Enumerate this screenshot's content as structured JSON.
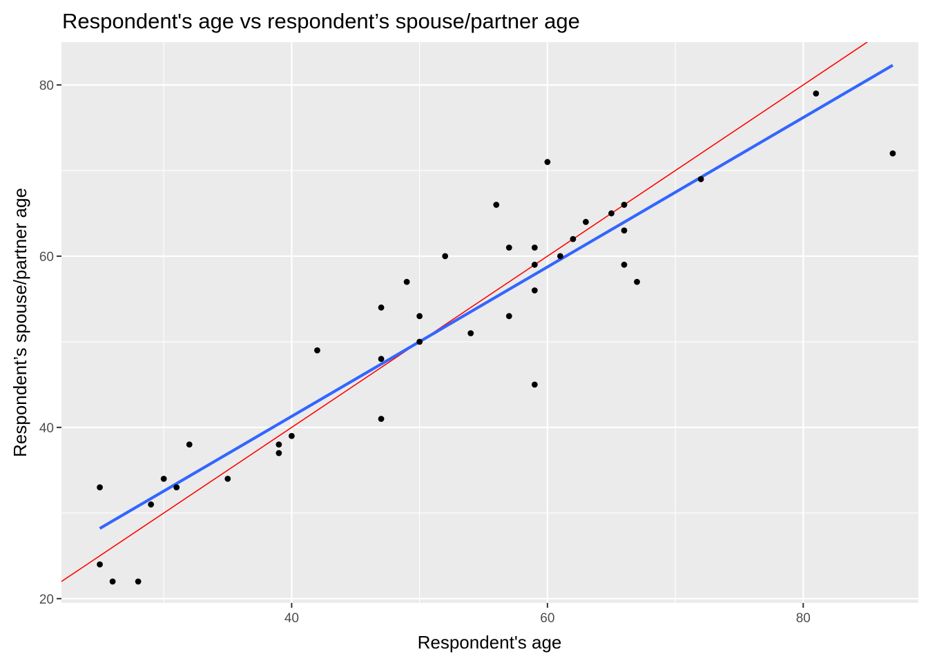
{
  "chart_data": {
    "type": "scatter",
    "title": "Respondent's age vs respondent’s spouse/partner age",
    "xlabel": "Respondent's age",
    "ylabel": "Respondent’s spouse/partner age",
    "xlim": [
      22,
      89
    ],
    "ylim": [
      19.5,
      85
    ],
    "x_ticks": [
      40,
      60,
      80
    ],
    "y_ticks": [
      20,
      40,
      60,
      80
    ],
    "x_tick_labels": [
      "40",
      "60",
      "80"
    ],
    "y_tick_labels": [
      "20",
      "40",
      "60",
      "80"
    ],
    "grid": true,
    "colors": {
      "panel": "#ebebeb",
      "grid": "#ffffff",
      "points": "#000000",
      "reference_line": "#ff0000",
      "fit_line": "#3366ff"
    },
    "points": [
      {
        "x": 25,
        "y": 33
      },
      {
        "x": 25,
        "y": 24
      },
      {
        "x": 26,
        "y": 22
      },
      {
        "x": 28,
        "y": 22
      },
      {
        "x": 29,
        "y": 31
      },
      {
        "x": 30,
        "y": 34
      },
      {
        "x": 31,
        "y": 33
      },
      {
        "x": 32,
        "y": 38
      },
      {
        "x": 35,
        "y": 34
      },
      {
        "x": 39,
        "y": 38
      },
      {
        "x": 39,
        "y": 37
      },
      {
        "x": 40,
        "y": 39
      },
      {
        "x": 42,
        "y": 49
      },
      {
        "x": 47,
        "y": 54
      },
      {
        "x": 47,
        "y": 48
      },
      {
        "x": 47,
        "y": 41
      },
      {
        "x": 49,
        "y": 57
      },
      {
        "x": 50,
        "y": 53
      },
      {
        "x": 50,
        "y": 50
      },
      {
        "x": 52,
        "y": 60
      },
      {
        "x": 54,
        "y": 51
      },
      {
        "x": 56,
        "y": 66
      },
      {
        "x": 57,
        "y": 61
      },
      {
        "x": 57,
        "y": 53
      },
      {
        "x": 59,
        "y": 61
      },
      {
        "x": 59,
        "y": 59
      },
      {
        "x": 59,
        "y": 56
      },
      {
        "x": 59,
        "y": 45
      },
      {
        "x": 60,
        "y": 71
      },
      {
        "x": 61,
        "y": 60
      },
      {
        "x": 62,
        "y": 62
      },
      {
        "x": 63,
        "y": 64
      },
      {
        "x": 65,
        "y": 65
      },
      {
        "x": 66,
        "y": 66
      },
      {
        "x": 66,
        "y": 63
      },
      {
        "x": 66,
        "y": 59
      },
      {
        "x": 67,
        "y": 57
      },
      {
        "x": 72,
        "y": 69
      },
      {
        "x": 81,
        "y": 79
      },
      {
        "x": 87,
        "y": 72
      }
    ],
    "reference_line": {
      "intercept": 0,
      "slope": 1
    },
    "fit_line": {
      "x": [
        25,
        87
      ],
      "y": [
        28.2,
        82.3
      ]
    }
  }
}
